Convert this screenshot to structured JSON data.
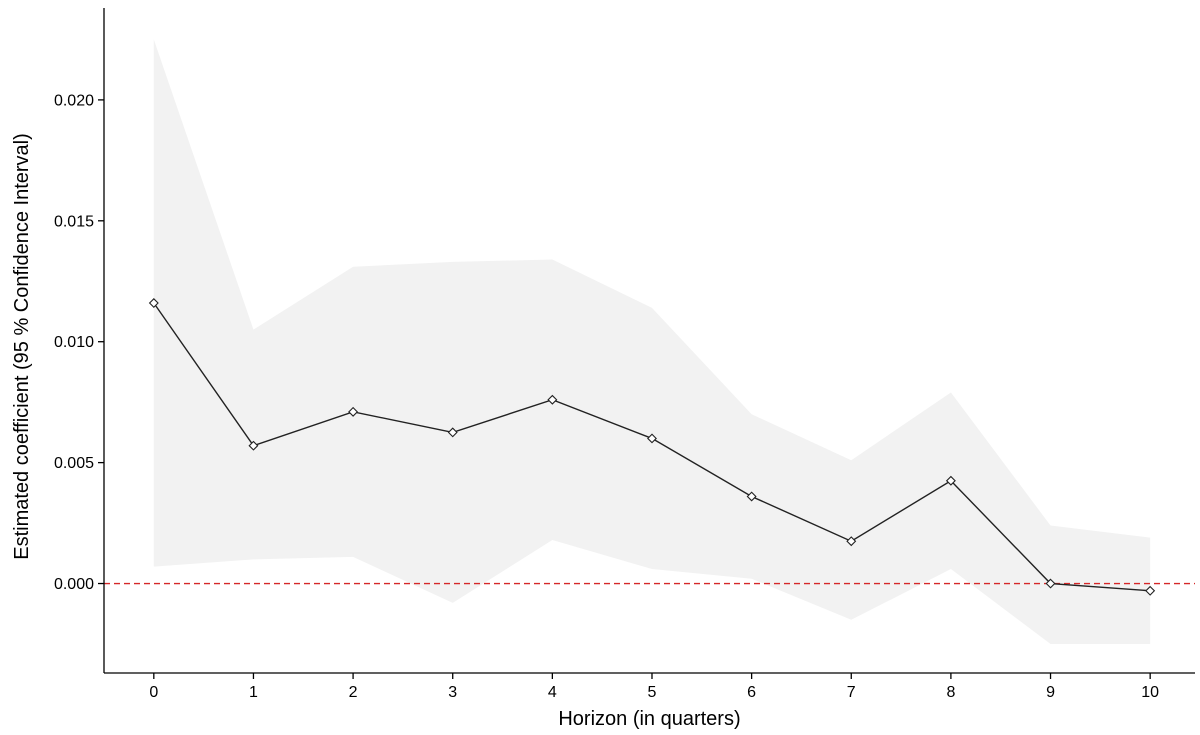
{
  "chart_data": {
    "type": "line",
    "title": "",
    "xlabel": "Horizon (in quarters)",
    "ylabel": "Estimated coefficient (95 % Confidence Interval)",
    "x": [
      0,
      1,
      2,
      3,
      4,
      5,
      6,
      7,
      8,
      9,
      10
    ],
    "y": [
      0.0116,
      0.0057,
      0.0071,
      0.00625,
      0.0076,
      0.006,
      0.0036,
      0.00175,
      0.00425,
      0.0,
      -0.0003
    ],
    "ci_lower": [
      0.0007,
      0.001,
      0.0011,
      -0.0008,
      0.0018,
      0.0006,
      0.0002,
      -0.0015,
      0.0006,
      -0.0025,
      -0.0025
    ],
    "ci_upper": [
      0.0225,
      0.0105,
      0.0131,
      0.0133,
      0.0134,
      0.0114,
      0.007,
      0.0051,
      0.0079,
      0.0024,
      0.0019
    ],
    "xlim": [
      -0.5,
      10.45
    ],
    "ylim": [
      -0.0037,
      0.0238
    ],
    "xticks": [
      0,
      1,
      2,
      3,
      4,
      5,
      6,
      7,
      8,
      9,
      10
    ],
    "xtick_labels": [
      "0",
      "1",
      "2",
      "3",
      "4",
      "5",
      "6",
      "7",
      "8",
      "9",
      "10"
    ],
    "yticks": [
      0.0,
      0.005,
      0.01,
      0.015,
      0.02
    ],
    "ytick_labels": [
      "0.000",
      "0.005",
      "0.010",
      "0.015",
      "0.020"
    ],
    "reference_line": {
      "y": 0.0,
      "style": "dashed",
      "color": "#d62728"
    },
    "grid": false,
    "legend": "none",
    "marker": "open-diamond",
    "colors": {
      "line": "#222222",
      "band": "#f2f2f2",
      "marker_stroke": "#222222",
      "reference": "#d62728"
    }
  }
}
